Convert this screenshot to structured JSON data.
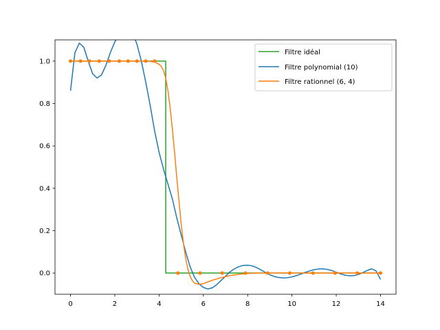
{
  "chart_data": {
    "type": "line",
    "xlim": [
      -0.7,
      14.7
    ],
    "ylim": [
      -0.1,
      1.1
    ],
    "x_ticks": [
      0,
      2,
      4,
      6,
      8,
      10,
      12,
      14
    ],
    "x_tick_labels": [
      "0",
      "2",
      "4",
      "6",
      "8",
      "10",
      "12",
      "14"
    ],
    "y_ticks": [
      0.0,
      0.2,
      0.4,
      0.6,
      0.8,
      1.0
    ],
    "y_tick_labels": [
      "0.0",
      "0.2",
      "0.4",
      "0.6",
      "0.8",
      "1.0"
    ],
    "grid": false,
    "legend_position": "top-right",
    "series": [
      {
        "name": "Filtre idéal",
        "color": "#2ca02c",
        "x": [
          0,
          4.3,
          4.3,
          14
        ],
        "y": [
          1.0,
          1.0,
          0.0,
          0.0
        ]
      },
      {
        "name": "Filtre polynomial (10)",
        "color": "#1f77b4",
        "x": [
          0,
          0.2,
          0.4,
          0.6,
          0.8,
          1.0,
          1.2,
          1.4,
          1.6,
          1.8,
          2.0,
          2.2,
          2.4,
          2.6,
          2.8,
          3.0,
          3.2,
          3.4,
          3.6,
          3.8,
          4.0,
          4.2,
          4.4,
          4.6,
          4.8,
          5.0,
          5.2,
          5.4,
          5.6,
          5.8,
          6.0,
          6.2,
          6.4,
          6.6,
          6.8,
          7.0,
          7.2,
          7.4,
          7.6,
          7.8,
          8.0,
          8.2,
          8.4,
          8.6,
          8.8,
          9.0,
          9.2,
          9.4,
          9.6,
          9.8,
          10.0,
          10.2,
          10.4,
          10.6,
          10.8,
          11.0,
          11.2,
          11.4,
          11.6,
          11.8,
          12.0,
          12.2,
          12.4,
          12.6,
          12.8,
          13.0,
          13.2,
          13.4,
          13.6,
          13.8,
          14.0
        ],
        "y": [
          0.86,
          1.04,
          1.085,
          1.065,
          1.0,
          0.94,
          0.92,
          0.935,
          0.98,
          1.04,
          1.09,
          1.125,
          1.145,
          1.15,
          1.135,
          1.08,
          1.0,
          0.9,
          0.79,
          0.67,
          0.57,
          0.49,
          0.42,
          0.35,
          0.26,
          0.18,
          0.1,
          0.03,
          -0.02,
          -0.05,
          -0.068,
          -0.075,
          -0.07,
          -0.055,
          -0.035,
          -0.015,
          0.005,
          0.02,
          0.03,
          0.036,
          0.037,
          0.034,
          0.026,
          0.015,
          0.003,
          -0.008,
          -0.016,
          -0.021,
          -0.023,
          -0.022,
          -0.018,
          -0.012,
          -0.005,
          0.003,
          0.01,
          0.016,
          0.019,
          0.02,
          0.017,
          0.012,
          0.004,
          -0.004,
          -0.01,
          -0.013,
          -0.012,
          -0.007,
          0.002,
          0.012,
          0.02,
          0.01,
          -0.03
        ]
      },
      {
        "name": "Filtre rationnel (6, 4)",
        "color": "#ff7f0e",
        "x": [
          0,
          0.5,
          1.0,
          1.5,
          2.0,
          2.5,
          3.0,
          3.3,
          3.6,
          3.8,
          4.0,
          4.1,
          4.2,
          4.3,
          4.4,
          4.5,
          4.6,
          4.7,
          4.8,
          4.9,
          5.0,
          5.1,
          5.2,
          5.3,
          5.4,
          5.5,
          5.6,
          5.8,
          6.0,
          6.2,
          6.4,
          6.8,
          7.2,
          7.6,
          8.0,
          8.5,
          9.0,
          9.5,
          10.0,
          11.0,
          12.0,
          13.0,
          14.0
        ],
        "y": [
          1.0,
          1.0,
          1.0,
          1.0,
          1.0,
          1.0,
          1.0,
          1.0,
          0.999,
          0.995,
          0.985,
          0.975,
          0.955,
          0.92,
          0.86,
          0.78,
          0.68,
          0.57,
          0.45,
          0.34,
          0.23,
          0.14,
          0.07,
          0.02,
          -0.015,
          -0.035,
          -0.048,
          -0.053,
          -0.05,
          -0.042,
          -0.034,
          -0.022,
          -0.012,
          -0.006,
          -0.002,
          0.0,
          0.0,
          0.0,
          0.0,
          0.0,
          0.0,
          0.0,
          0.0
        ]
      }
    ],
    "markers": {
      "color": "#ff7f0e",
      "x": [
        0,
        0.45,
        0.85,
        1.3,
        1.75,
        2.2,
        2.6,
        3.0,
        3.4,
        3.8,
        4.85,
        5.85,
        6.85,
        7.9,
        8.9,
        9.9,
        10.95,
        11.95,
        12.95,
        14.0
      ],
      "y": [
        1.0,
        1.0,
        1.0,
        1.0,
        1.0,
        1.0,
        1.0,
        1.0,
        1.0,
        1.0,
        0.0,
        0.0,
        0.0,
        0.0,
        0.0,
        0.0,
        0.0,
        0.0,
        0.0,
        0.0
      ]
    }
  }
}
